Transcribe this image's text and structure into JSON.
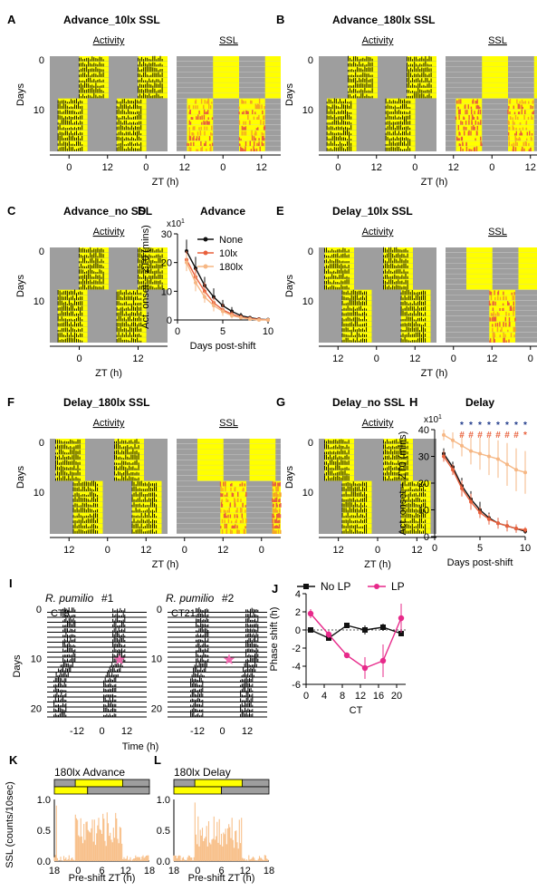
{
  "panels": [
    {
      "id": "A",
      "title": "Advance_10lx SSL",
      "kind": "dual",
      "sub": [
        "Activity",
        "SSL"
      ],
      "ylabel": "Days",
      "yticks": [
        "0",
        "10"
      ],
      "xticks": [
        "0",
        "12",
        "0",
        "12",
        "0",
        "12"
      ],
      "xlabel": "ZT (h)",
      "mode": "advance"
    },
    {
      "id": "B",
      "title": "Advance_180lx SSL",
      "kind": "dual",
      "sub": [
        "Activity",
        "SSL"
      ],
      "ylabel": "Days",
      "yticks": [
        "0",
        "10"
      ],
      "xticks": [
        "0",
        "12",
        "0",
        "12",
        "0",
        "12"
      ],
      "xlabel": "ZT (h)",
      "mode": "advance"
    },
    {
      "id": "C",
      "title": "Advance_no SSL",
      "kind": "single",
      "sub": [
        "Activity"
      ],
      "ylabel": "Days",
      "yticks": [
        "0",
        "10"
      ],
      "xticks": [
        "0",
        "12"
      ],
      "xlabel": "ZT (h)",
      "mode": "advance"
    },
    {
      "id": "E",
      "title": "Delay_10lx SSL",
      "kind": "dual",
      "sub": [
        "Activity",
        "SSL"
      ],
      "ylabel": "Days",
      "yticks": [
        "0",
        "10"
      ],
      "xticks": [
        "12",
        "0",
        "12",
        "0",
        "12",
        "0"
      ],
      "xlabel": "ZT (h)",
      "mode": "delay"
    },
    {
      "id": "F",
      "title": "Delay_180lx SSL",
      "kind": "dual",
      "sub": [
        "Activity",
        "SSL"
      ],
      "ylabel": "Days",
      "yticks": [
        "0",
        "10"
      ],
      "xticks": [
        "12",
        "0",
        "12",
        "0",
        "12",
        "0"
      ],
      "xlabel": "ZT (h)",
      "mode": "delay"
    },
    {
      "id": "G",
      "title": "Delay_no SSL",
      "kind": "single",
      "sub": [
        "Activity"
      ],
      "ylabel": "Days",
      "yticks": [
        "0",
        "10"
      ],
      "xticks": [
        "12",
        "0",
        "12"
      ],
      "xlabel": "ZT (h)",
      "mode": "delay"
    }
  ],
  "panel_I": {
    "id": "I",
    "ylabel": "Days",
    "yticks": [
      "0",
      "10",
      "20"
    ],
    "xticks": [
      "-12",
      "0",
      "12"
    ],
    "xlabel": "Time (h)",
    "animals": [
      {
        "name": "R. pumilio",
        "num": "#1",
        "ct": "CT9"
      },
      {
        "name": "R. pumilio",
        "num": "#2",
        "ct": "CT21"
      }
    ]
  },
  "panel_KL": [
    {
      "id": "K",
      "title": "180lx Advance",
      "ylabel": "SSL (counts/10sec)",
      "xlabel": "Pre-shift ZT (h)",
      "xticks": [
        "18",
        "0",
        "6",
        "12",
        "18"
      ],
      "yticks": [
        "0.0",
        "0.5",
        "1.0"
      ]
    },
    {
      "id": "L",
      "title": "180lx Delay",
      "ylabel": "",
      "xlabel": "Pre-shift ZT (h)",
      "xticks": [
        "18",
        "0",
        "6",
        "12",
        "18"
      ],
      "yticks": [
        "0.0",
        "0.5",
        "1.0"
      ]
    }
  ],
  "chart_data": [
    {
      "id": "D",
      "type": "line",
      "title": "Advance",
      "xlabel": "Days post-shift",
      "ylabel": "Act. onset − ZT0 (mins)",
      "multiplier": "x10",
      "multiplier_exp": "1",
      "xlim": [
        0,
        10
      ],
      "ylim": [
        0,
        30
      ],
      "xticks": [
        0,
        5,
        10
      ],
      "yticks": [
        0,
        10,
        20,
        30
      ],
      "x": [
        1,
        2,
        3,
        4,
        5,
        6,
        7,
        8,
        9,
        10
      ],
      "series": [
        {
          "name": "None",
          "color": "#111111",
          "values": [
            24,
            18,
            12,
            8,
            5,
            3,
            1.5,
            0.8,
            0.3,
            0.1
          ],
          "err": [
            4,
            4,
            3,
            3,
            2,
            1.5,
            1,
            0.6,
            0.3,
            0.2
          ]
        },
        {
          "name": "10lx",
          "color": "#e8603c",
          "values": [
            21,
            15,
            10,
            6,
            3.5,
            2,
            1,
            0.5,
            0.2,
            0
          ],
          "err": [
            3,
            3,
            3,
            2,
            2,
            1,
            0.8,
            0.5,
            0.2,
            0
          ]
        },
        {
          "name": "180lx",
          "color": "#f6b784",
          "values": [
            20,
            13,
            8,
            5,
            3,
            1.5,
            0.8,
            0.3,
            0,
            0
          ],
          "err": [
            3,
            3,
            2,
            2,
            1.5,
            1,
            0.6,
            0.3,
            0,
            0
          ]
        }
      ]
    },
    {
      "id": "H",
      "type": "line",
      "title": "Delay",
      "xlabel": "Days post-shift",
      "ylabel": "Act. onset − ZT0 (mins)",
      "multiplier": "x10",
      "multiplier_exp": "1",
      "xlim": [
        0,
        10
      ],
      "ylim": [
        0,
        40
      ],
      "xticks": [
        0,
        5,
        10
      ],
      "yticks": [
        0,
        10,
        20,
        30,
        40
      ],
      "x": [
        1,
        2,
        3,
        4,
        5,
        6,
        7,
        8,
        9,
        10
      ],
      "sig": [
        {
          "x": 3,
          "marks": [
            "*",
            "#"
          ]
        },
        {
          "x": 4,
          "marks": [
            "*",
            "#"
          ]
        },
        {
          "x": 5,
          "marks": [
            "*",
            "#"
          ]
        },
        {
          "x": 6,
          "marks": [
            "*",
            "#"
          ]
        },
        {
          "x": 7,
          "marks": [
            "*",
            "#"
          ]
        },
        {
          "x": 8,
          "marks": [
            "*",
            "#"
          ]
        },
        {
          "x": 9,
          "marks": [
            "*",
            "#"
          ]
        },
        {
          "x": 10,
          "marks": [
            "*",
            "*"
          ]
        }
      ],
      "series": [
        {
          "name": "None",
          "color": "#111111",
          "values": [
            31,
            26,
            19,
            14,
            10,
            7,
            5,
            4,
            3,
            2
          ],
          "err": [
            2,
            2,
            3,
            3,
            3,
            2,
            2,
            2,
            1.5,
            1
          ]
        },
        {
          "name": "10lx",
          "color": "#e8603c",
          "values": [
            30,
            25,
            18,
            13,
            9,
            6.5,
            5,
            4,
            3,
            2.5
          ],
          "err": [
            2,
            2,
            3,
            3,
            2,
            2,
            2,
            2,
            1.5,
            1
          ]
        },
        {
          "name": "180lx",
          "color": "#f6b784",
          "values": [
            38,
            36,
            34,
            32,
            31,
            30,
            29,
            27,
            25,
            24
          ],
          "err": [
            2,
            3,
            4,
            5,
            6,
            7,
            7,
            8,
            8,
            8
          ]
        }
      ]
    },
    {
      "id": "J",
      "type": "line",
      "xlabel": "CT",
      "ylabel": "Phase shift (h)",
      "xlim": [
        0,
        22
      ],
      "ylim": [
        -6,
        4
      ],
      "xticks": [
        0,
        4,
        8,
        12,
        16,
        20
      ],
      "yticks": [
        -6,
        -4,
        -2,
        0,
        2,
        4
      ],
      "series": [
        {
          "name": "No LP",
          "color": "#111111",
          "marker": "square",
          "x": [
            1,
            5,
            9,
            13,
            17,
            21
          ],
          "values": [
            0,
            -0.9,
            0.5,
            0,
            0.3,
            -0.4
          ],
          "err": [
            0.3,
            0.3,
            0.3,
            0.5,
            0.4,
            0.3
          ]
        },
        {
          "name": "LP",
          "color": "#e7298a",
          "marker": "circle",
          "x": [
            1,
            5,
            9,
            13,
            17,
            21
          ],
          "values": [
            1.8,
            -0.5,
            -2.8,
            -4.2,
            -3.4,
            1.3
          ],
          "err": [
            0.5,
            0.4,
            0.3,
            1.2,
            1.8,
            1.6
          ]
        }
      ]
    }
  ],
  "colors": {
    "light": "#ffff00",
    "dark": "#9e9e9e",
    "ssl_a": "#f5a623",
    "ssl_b": "#e8603c",
    "none": "#111111",
    "lx10": "#e8603c",
    "lx180": "#f6b784",
    "lp": "#e7298a",
    "hist": "#f8c08a"
  }
}
